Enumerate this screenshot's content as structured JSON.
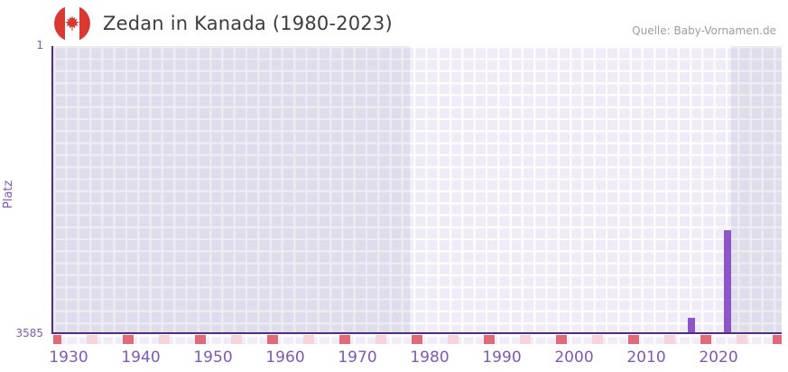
{
  "header": {
    "title": "Zedan in Kanada (1980-2023)",
    "flag_icon": "canada-flag",
    "source": "Quelle: Baby-Vornamen.de"
  },
  "chart_data": {
    "type": "bar",
    "title": "Zedan in Kanada (1980-2023)",
    "ylabel": "Platz",
    "y_ticks": {
      "top": "1",
      "bottom": "3585"
    },
    "y_range": [
      1,
      3585
    ],
    "y_axis_inverted": true,
    "x_tick_labels": [
      "1930",
      "1940",
      "1950",
      "1960",
      "1970",
      "1980",
      "1990",
      "2000",
      "2010",
      "2020"
    ],
    "x_range_years": [
      1928,
      2029
    ],
    "data_window_years": [
      1980,
      2023
    ],
    "series": [
      {
        "name": "Platz",
        "points": [
          {
            "year": 2016,
            "rank": 3400
          },
          {
            "year": 2021,
            "rank": 2310
          }
        ]
      }
    ],
    "no_data_shade_spans": [
      [
        1928,
        1977.5
      ],
      [
        2022,
        2029
      ]
    ],
    "axis_marks": {
      "dark_years": [
        1928,
        1938,
        1948,
        1958,
        1968,
        1978,
        1988,
        1998,
        2008,
        2018,
        2028
      ],
      "light_years": [
        1933,
        1943,
        1953,
        1963,
        1973,
        1983,
        1993,
        2003,
        2013,
        2023
      ]
    },
    "grid": true,
    "legend": false,
    "colors": {
      "bar": "#8c55c8",
      "axis_line": "#4f2d7f",
      "tick_labels": "#7e58b8",
      "grid_cell": "#efecf8",
      "no_data_shade": "rgba(90,80,130,0.10)",
      "mark_dark": "#e0697a",
      "mark_light": "#f6d3dd",
      "title_text": "#3d3d3d",
      "source_text": "#9d9d9d",
      "flag_red": "#d83933"
    }
  }
}
